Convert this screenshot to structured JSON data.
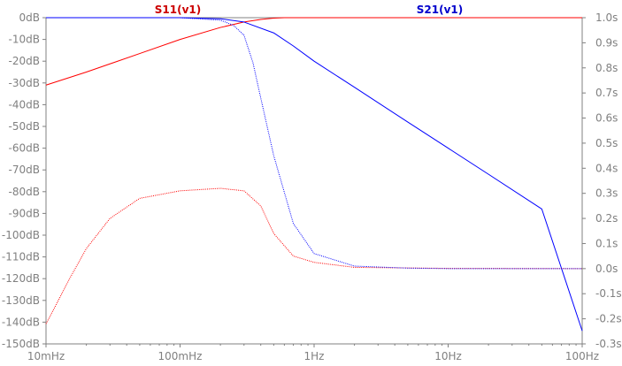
{
  "chart_data": {
    "type": "line",
    "x_scale": "log",
    "x_unit": "Hz",
    "x_range": [
      0.01,
      100
    ],
    "x_ticks": [
      "10mHz",
      "100mHz",
      "1Hz",
      "10Hz",
      "100Hz"
    ],
    "y_left_range_db": [
      -150,
      0
    ],
    "y_left_ticks": [
      "0dB",
      "-10dB",
      "-20dB",
      "-30dB",
      "-40dB",
      "-50dB",
      "-60dB",
      "-70dB",
      "-80dB",
      "-90dB",
      "-100dB",
      "-110dB",
      "-120dB",
      "-130dB",
      "-140dB",
      "-150dB"
    ],
    "y_right_range_s": [
      -0.3,
      1.0
    ],
    "y_right_ticks": [
      "1.0s",
      "0.9s",
      "0.8s",
      "0.7s",
      "0.6s",
      "0.5s",
      "0.4s",
      "0.3s",
      "0.2s",
      "0.1s",
      "0.0s",
      "-0.1s",
      "-0.2s",
      "-0.3s"
    ],
    "legend": [
      "S11(v1)",
      "S21(v1)"
    ],
    "series": [
      {
        "name": "S11(v1)",
        "color": "#ff0000",
        "axis": "left",
        "style": "solid",
        "unit": "dB",
        "x": [
          0.01,
          0.02,
          0.05,
          0.1,
          0.2,
          0.3,
          0.4,
          0.5,
          0.6,
          1,
          10,
          100
        ],
        "y": [
          -31,
          -25,
          -16.5,
          -10,
          -4.5,
          -2,
          -0.8,
          -0.2,
          0,
          0,
          0,
          0
        ]
      },
      {
        "name": "S21(v1)",
        "color": "#0000ff",
        "axis": "left",
        "style": "solid",
        "unit": "dB",
        "x": [
          0.01,
          0.05,
          0.1,
          0.2,
          0.3,
          0.5,
          0.7,
          1,
          2,
          5,
          10,
          20,
          50,
          100
        ],
        "y": [
          0,
          0,
          0,
          -0.5,
          -2,
          -7,
          -13,
          -20,
          -32,
          -48,
          -60,
          -72,
          -88,
          -144
        ]
      },
      {
        "name": "S11(v1)",
        "color": "#ff0000",
        "axis": "right",
        "style": "dotted",
        "unit": "s",
        "x": [
          0.01,
          0.012,
          0.015,
          0.02,
          0.03,
          0.05,
          0.1,
          0.2,
          0.3,
          0.4,
          0.5,
          0.7,
          1,
          2,
          10,
          100
        ],
        "y": [
          -0.22,
          -0.14,
          -0.04,
          0.08,
          0.2,
          0.28,
          0.31,
          0.32,
          0.31,
          0.25,
          0.14,
          0.05,
          0.025,
          0.005,
          0.001,
          0.0
        ]
      },
      {
        "name": "S21(v1)",
        "color": "#0000ff",
        "axis": "right",
        "style": "dotted",
        "unit": "s",
        "x": [
          0.01,
          0.1,
          0.2,
          0.25,
          0.3,
          0.35,
          0.4,
          0.5,
          0.7,
          1,
          2,
          5,
          10,
          100
        ],
        "y": [
          1.0,
          1.0,
          0.99,
          0.97,
          0.93,
          0.82,
          0.68,
          0.45,
          0.18,
          0.06,
          0.01,
          0.002,
          0.0,
          0.0
        ]
      }
    ]
  }
}
